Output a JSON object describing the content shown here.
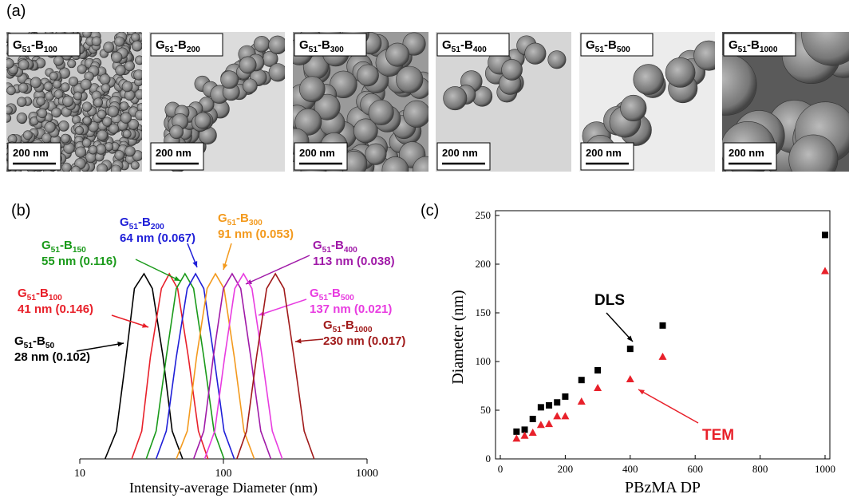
{
  "panel_labels": [
    "(a)",
    "(b)",
    "(c)"
  ],
  "tem": {
    "images": [
      {
        "label": [
          "G",
          "51",
          "-B",
          "100"
        ],
        "scale": "200 nm"
      },
      {
        "label": [
          "G",
          "51",
          "-B",
          "200"
        ],
        "scale": "200 nm"
      },
      {
        "label": [
          "G",
          "51",
          "-B",
          "300"
        ],
        "scale": "200 nm"
      },
      {
        "label": [
          "G",
          "51",
          "-B",
          "400"
        ],
        "scale": "200 nm"
      },
      {
        "label": [
          "G",
          "51",
          "-B",
          "500"
        ],
        "scale": "200 nm"
      },
      {
        "label": [
          "G",
          "51",
          "-B",
          "1000"
        ],
        "scale": "200 nm"
      }
    ]
  },
  "chart_data": [
    {
      "type": "line",
      "xlabel": "Intensity-average Diameter (nm)",
      "xscale": "log",
      "xlim": [
        10,
        1000
      ],
      "xticks": [
        10,
        100,
        1000
      ],
      "ylim": [
        0,
        1
      ],
      "series": [
        {
          "name": [
            "G",
            "51",
            "-B",
            "50"
          ],
          "annotation": "28 nm (0.102)",
          "color": "#000000",
          "x": [
            15,
            18,
            21,
            24,
            28,
            32,
            38,
            44,
            52
          ],
          "values": [
            0,
            0.15,
            0.55,
            0.92,
            1,
            0.92,
            0.55,
            0.15,
            0
          ]
        },
        {
          "name": [
            "G",
            "51",
            "-B",
            "100"
          ],
          "annotation": "41 nm (0.146)",
          "color": "#e8202a",
          "x": [
            23,
            27,
            31,
            37,
            42,
            48,
            57,
            67,
            78
          ],
          "values": [
            0,
            0.15,
            0.55,
            0.92,
            1,
            0.92,
            0.55,
            0.15,
            0
          ]
        },
        {
          "name": [
            "G",
            "51",
            "-B",
            "150"
          ],
          "annotation": "55 nm (0.116)",
          "color": "#1a9a1a",
          "x": [
            29,
            34,
            40,
            47,
            54,
            62,
            73,
            86,
            101
          ],
          "values": [
            0,
            0.15,
            0.55,
            0.92,
            1,
            0.92,
            0.55,
            0.15,
            0
          ]
        },
        {
          "name": [
            "G",
            "51",
            "-B",
            "200"
          ],
          "annotation": "64 nm (0.067)",
          "color": "#1f1fd8",
          "x": [
            34,
            40,
            47,
            56,
            64,
            73,
            86,
            101,
            119
          ],
          "values": [
            0,
            0.15,
            0.55,
            0.92,
            1,
            0.92,
            0.55,
            0.15,
            0
          ]
        },
        {
          "name": [
            "G",
            "51",
            "-B",
            "300"
          ],
          "annotation": "91 nm (0.053)",
          "color": "#f39a1e",
          "x": [
            47,
            56,
            65,
            77,
            88,
            101,
            119,
            139,
            164
          ],
          "values": [
            0,
            0.15,
            0.55,
            0.92,
            1,
            0.92,
            0.55,
            0.15,
            0
          ]
        },
        {
          "name": [
            "G",
            "51",
            "-B",
            "400"
          ],
          "annotation": "113 nm (0.038)",
          "color": "#a01aa8",
          "x": [
            62,
            73,
            85,
            100,
            115,
            132,
            155,
            182,
            214
          ],
          "values": [
            0,
            0.15,
            0.55,
            0.92,
            1,
            0.92,
            0.55,
            0.15,
            0
          ]
        },
        {
          "name": [
            "G",
            "51",
            "-B",
            "500"
          ],
          "annotation": "137 nm (0.021)",
          "color": "#e83ce0",
          "x": [
            74,
            87,
            102,
            120,
            138,
            158,
            186,
            219,
            257
          ],
          "values": [
            0,
            0.15,
            0.55,
            0.92,
            1,
            0.92,
            0.55,
            0.15,
            0
          ]
        },
        {
          "name": [
            "G",
            "51",
            "-B",
            "1000"
          ],
          "annotation": "230 nm (0.017)",
          "color": "#a01a1a",
          "x": [
            124,
            145,
            170,
            200,
            230,
            264,
            310,
            365,
            428
          ],
          "values": [
            0,
            0.15,
            0.55,
            0.92,
            1,
            0.92,
            0.55,
            0.15,
            0
          ]
        }
      ]
    },
    {
      "type": "scatter",
      "xlabel": "PBzMA DP",
      "ylabel": "Diameter (nm)",
      "xlim": [
        0,
        1000
      ],
      "xticks": [
        0,
        200,
        400,
        600,
        800,
        1000
      ],
      "ylim": [
        0,
        250
      ],
      "yticks": [
        0,
        50,
        100,
        150,
        200,
        250
      ],
      "series": [
        {
          "name": "DLS",
          "color": "#000000",
          "marker": "square",
          "x": [
            50,
            75,
            100,
            125,
            150,
            175,
            200,
            250,
            300,
            400,
            500,
            1000
          ],
          "values": [
            28,
            30,
            41,
            53,
            55,
            58,
            64,
            81,
            91,
            113,
            137,
            230
          ]
        },
        {
          "name": "TEM",
          "color": "#e8202a",
          "marker": "triangle",
          "x": [
            50,
            75,
            100,
            125,
            150,
            175,
            200,
            250,
            300,
            400,
            500,
            1000
          ],
          "values": [
            21,
            24,
            27,
            35,
            36,
            44,
            44,
            59,
            73,
            82,
            105,
            193
          ]
        }
      ]
    }
  ]
}
